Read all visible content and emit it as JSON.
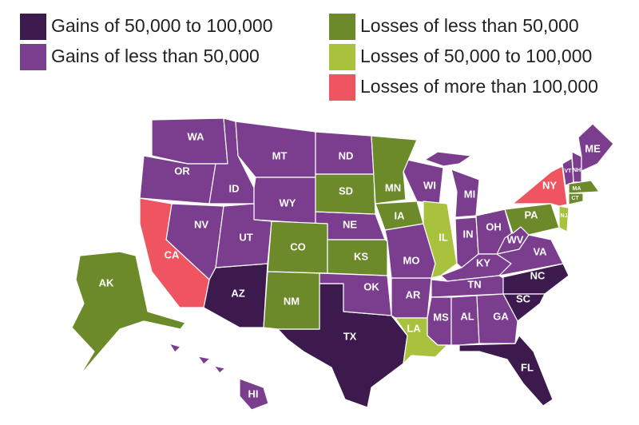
{
  "legend": [
    {
      "label": "Gains of 50,000 to 100,000",
      "color": "#3c1a4e",
      "states": [
        "AZ",
        "TX",
        "NC",
        "SC",
        "FL"
      ]
    },
    {
      "label": "Gains of less than 50,000",
      "color": "#7b3d8e",
      "states": [
        "WA",
        "OR",
        "ID",
        "MT",
        "WY",
        "ND",
        "NV",
        "UT",
        "NE",
        "OK",
        "AR",
        "MO",
        "WI",
        "MI",
        "IN",
        "OH",
        "KY",
        "TN",
        "MS",
        "AL",
        "GA",
        "WV",
        "VA",
        "VT",
        "NH",
        "ME",
        "HI"
      ]
    },
    {
      "label": "Losses of less than 50,000",
      "color": "#6d8a2b",
      "states": [
        "AK",
        "CO",
        "NM",
        "SD",
        "MN",
        "IA",
        "KS",
        "PA",
        "MA",
        "CT"
      ]
    },
    {
      "label": "Losses of 50,000 to 100,000",
      "color": "#a9c23e",
      "states": [
        "IL",
        "LA",
        "NJ"
      ]
    },
    {
      "label": "Losses of more than 100,000",
      "color": "#ef5461",
      "states": [
        "CA",
        "NY"
      ]
    }
  ]
}
